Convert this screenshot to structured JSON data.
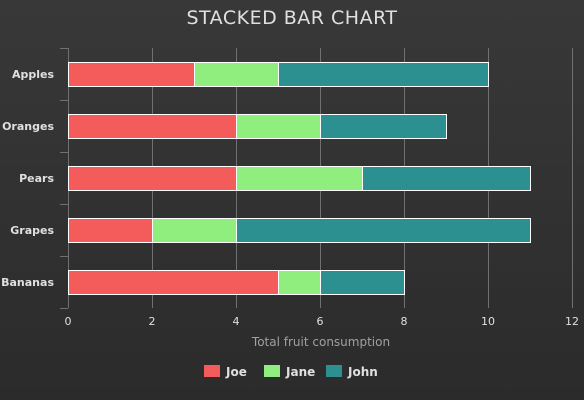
{
  "chart_data": {
    "type": "bar",
    "orientation": "horizontal",
    "stacked": true,
    "title": "STACKED BAR CHART",
    "categories": [
      "Apples",
      "Oranges",
      "Pears",
      "Grapes",
      "Bananas"
    ],
    "series": [
      {
        "name": "Joe",
        "color": "#f45b5b",
        "values": [
          3,
          4,
          4,
          2,
          5
        ]
      },
      {
        "name": "Jane",
        "color": "#90ee7e",
        "values": [
          2,
          2,
          3,
          2,
          1
        ]
      },
      {
        "name": "John",
        "color": "#2b908f",
        "values": [
          5,
          3,
          4,
          7,
          2
        ]
      }
    ],
    "xlabel": "Total fruit consumption",
    "ylabel": "",
    "xlim": [
      0,
      12
    ],
    "xticks": [
      "0",
      "2",
      "4",
      "6",
      "8",
      "10",
      "12"
    ],
    "grid": true,
    "legend_position": "bottom"
  },
  "colors": {
    "background": "#333333",
    "text": "#e0e0e3",
    "grid": "#707073"
  }
}
